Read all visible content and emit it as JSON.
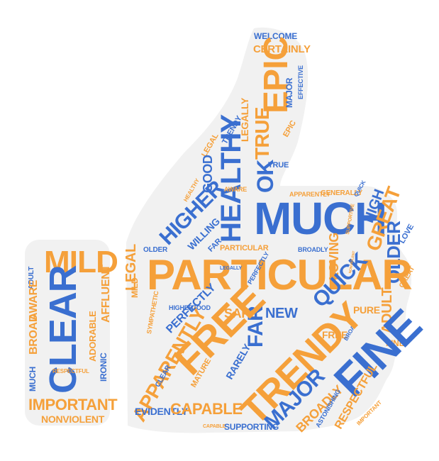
{
  "colors": {
    "orange": "#f5a03a",
    "blue": "#3a6fd0",
    "shape_fill": "#f1f1f1"
  },
  "wrist_words": {
    "mild": "MILD",
    "adult": "ADULT",
    "broad": "BROAD",
    "aware": "AWARE",
    "affluent": "AFFLUENT",
    "clear": "CLEAR",
    "adorable": "ADORABLE",
    "ironic": "IRONIC",
    "respectful": "RESPECTFUL",
    "much": "MUCH",
    "important": "IMPORTANT",
    "nonviolent": "NONVIOLENT"
  },
  "hand_words": {
    "welcome": "WELCOME",
    "certainly": "CERTAINLY",
    "epic": "EPIC",
    "effective": "EFFECTIVE",
    "major": "MAJOR",
    "true": "TRUE",
    "legally": "LEGALLY",
    "trendy_small": "TRENDY",
    "legal_small": "LEGAL",
    "epic_small": "EPIC",
    "healthy": "HEALTHY",
    "good": "GOOD",
    "true_small": "TRUE",
    "ok": "OK",
    "aware": "AWARE",
    "healthy_small": "HEALTHY",
    "much": "MUCH",
    "apparently_small": "APPARENTLY",
    "generally": "GENERALLY",
    "quick_small": "QUICK",
    "supportive": "SUPPORTIVE",
    "high": "HIGH",
    "great": "GREAT",
    "love": "LOVE",
    "higher": "HIGHER",
    "willing": "WILLING",
    "far_small": "FAR",
    "particular_small": "PARTICULAR",
    "broadly_small": "BROADLY",
    "older_small": "OLDER",
    "loving": "LOVING",
    "older": "OLDER",
    "legal": "LEGAL",
    "particular": "PARTICULAR",
    "legally_small": "LEGALLY",
    "perfectly_small": "PERFECTLY",
    "great_small": "GREAT",
    "mild": "MILD",
    "sympathetic": "SYMPATHETIC",
    "higher_small": "HIGHER",
    "good_small": "GOOD",
    "safe": "SAFE",
    "new": "NEW",
    "far": "FAR",
    "quick": "QUICK",
    "pure": "PURE",
    "adult": "ADULT",
    "apparently": "APPARENTLY",
    "perfectly": "PERFECTLY",
    "free": "FREE",
    "free_small": "FREE",
    "broad": "BROAD",
    "fine_small": "FINE",
    "rarely": "RARELY",
    "trendy": "TRENDY",
    "fine": "FINE",
    "clear": "CLEAR",
    "mature": "MATURE",
    "evidently": "EVIDENTLY",
    "capable": "CAPABLE",
    "broadly": "BROADLY",
    "respectful": "RESPECTFUL",
    "astonishing": "ASTONISHING",
    "important": "IMPORTANT",
    "capable_small": "CAPABLE",
    "supporting": "SUPPORTING",
    "nonviolent_small": "NONVIOLENT"
  }
}
